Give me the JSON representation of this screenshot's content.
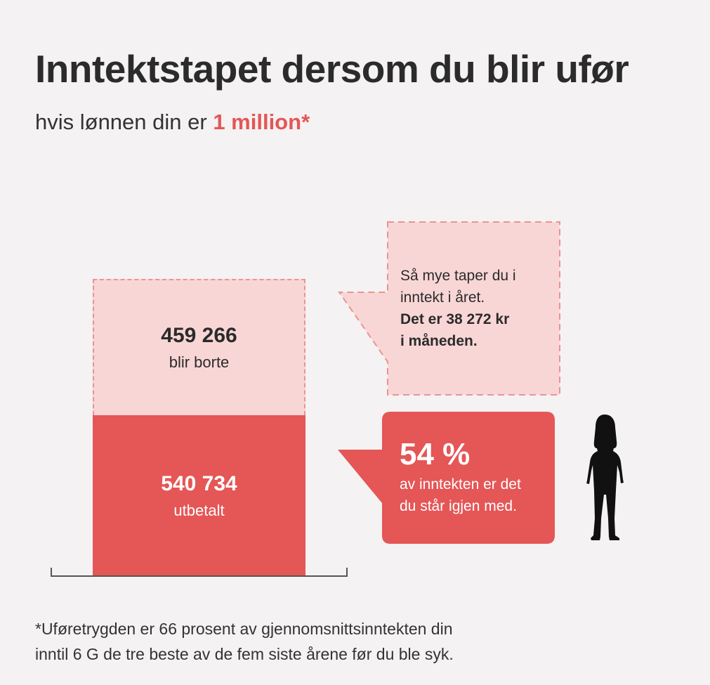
{
  "title": "Inntektstapet dersom du blir ufør",
  "subtitle": {
    "prefix": "hvis lønnen din er ",
    "highlight": "1 million",
    "suffix": "*"
  },
  "chart_data": {
    "type": "bar",
    "stacked": true,
    "total": 1000000,
    "segments": [
      {
        "value_label": "540 734",
        "label": "utbetalt",
        "value": 540734,
        "color": "#e55656",
        "style": "solid"
      },
      {
        "value_label": "459 266",
        "label": "blir borte",
        "value": 459266,
        "color": "#f9d6d6",
        "style": "dashed"
      }
    ]
  },
  "callouts": {
    "lost": {
      "line1": "Så mye taper du i",
      "line2": "inntekt i året.",
      "bold1": "Det er 38 272 kr",
      "bold2": "i måneden."
    },
    "share": {
      "pct": "54 %",
      "line1": "av inntekten er det",
      "line2": "du står igjen med."
    }
  },
  "person": {
    "icon": "person-silhouette-icon"
  },
  "footnote": {
    "line1": "*Uføretrygden er 66 prosent av gjennomsnittsinntekten din",
    "line2": "inntil 6 G de tre beste av de fem siste årene før du ble syk."
  },
  "colors": {
    "accent": "#e55656",
    "light": "#f9d6d6",
    "dash": "#ea9393",
    "background": "#f4f2f2"
  }
}
